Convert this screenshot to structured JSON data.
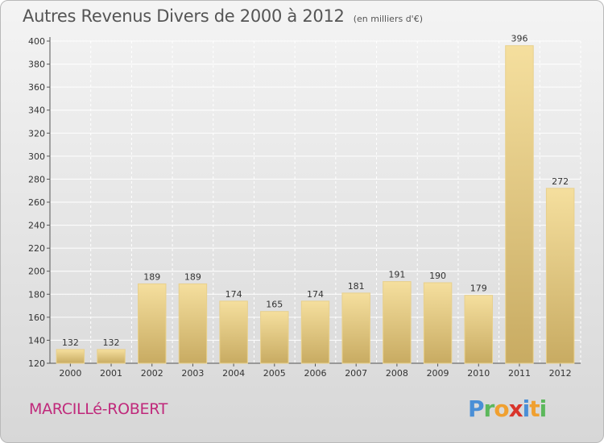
{
  "header": {
    "title": "Autres Revenus Divers de 2000 à 2012",
    "subtitle": "(en milliers d'€)"
  },
  "footer": {
    "commune": "MARCILLé-ROBERT",
    "logo": {
      "letters": [
        "P",
        "r",
        "o",
        "x",
        "i",
        "t",
        "i"
      ],
      "colors": [
        "#4a8fd6",
        "#5cb85c",
        "#f0a030",
        "#d9342b",
        "#4a8fd6",
        "#f0a030",
        "#5cb85c"
      ]
    }
  },
  "colors": {
    "bar_light": "#f5df9e",
    "bar_dark": "#c8ab62",
    "commune": "#c0297b"
  },
  "chart_data": {
    "type": "bar",
    "title": "Autres Revenus Divers de 2000 à 2012",
    "subtitle": "(en milliers d'€)",
    "categories": [
      "2000",
      "2001",
      "2002",
      "2003",
      "2004",
      "2005",
      "2006",
      "2007",
      "2008",
      "2009",
      "2010",
      "2011",
      "2012"
    ],
    "values": [
      132,
      132,
      189,
      189,
      174,
      165,
      174,
      181,
      191,
      190,
      179,
      396,
      272
    ],
    "ylim": [
      120,
      400
    ],
    "yticks": [
      120,
      140,
      160,
      180,
      200,
      220,
      240,
      260,
      280,
      300,
      320,
      340,
      360,
      380,
      400
    ],
    "grid": true
  }
}
